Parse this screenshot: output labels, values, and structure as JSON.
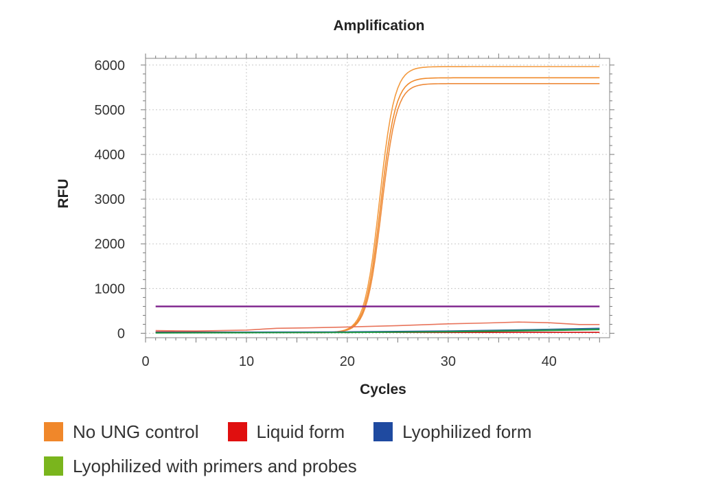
{
  "chart_data": {
    "type": "line",
    "title": "Amplification",
    "xlabel": "Cycles",
    "ylabel": "RFU",
    "xlim": [
      0,
      46
    ],
    "ylim": [
      -100,
      6150
    ],
    "xticks": [
      0,
      10,
      20,
      30,
      40
    ],
    "yticks": [
      0,
      1000,
      2000,
      3000,
      4000,
      5000,
      6000
    ],
    "grid": true,
    "legend_position": "bottom",
    "threshold": {
      "value": 600,
      "color": "#7b1f8a"
    },
    "series": [
      {
        "name": "No UNG control",
        "color": "#f39a3f",
        "plateau": 5950,
        "midpoint": 23.2,
        "slope": 1.35
      },
      {
        "name": "No UNG control",
        "color": "#f08a2c",
        "plateau": 5700,
        "midpoint": 23.3,
        "slope": 1.35
      },
      {
        "name": "No UNG control",
        "color": "#ee8a3a",
        "plateau": 5570,
        "midpoint": 23.4,
        "slope": 1.35
      },
      {
        "name": "Liquid form",
        "color": "#e8735a",
        "points": [
          [
            1,
            60
          ],
          [
            5,
            50
          ],
          [
            10,
            70
          ],
          [
            13,
            110
          ],
          [
            16,
            120
          ],
          [
            20,
            140
          ],
          [
            25,
            170
          ],
          [
            30,
            210
          ],
          [
            34,
            230
          ],
          [
            37,
            250
          ],
          [
            40,
            235
          ],
          [
            43,
            195
          ],
          [
            45,
            195
          ]
        ]
      },
      {
        "name": "Liquid form",
        "color": "#d40f0f",
        "points": [
          [
            1,
            30
          ],
          [
            10,
            25
          ],
          [
            20,
            22
          ],
          [
            30,
            18
          ],
          [
            40,
            20
          ],
          [
            45,
            20
          ]
        ]
      },
      {
        "name": "Lyophilized form",
        "color": "#1f4aa8",
        "points": [
          [
            1,
            20
          ],
          [
            10,
            25
          ],
          [
            20,
            30
          ],
          [
            30,
            50
          ],
          [
            38,
            80
          ],
          [
            45,
            110
          ]
        ]
      },
      {
        "name": "Lyophilized form",
        "color": "#2a7a7a",
        "points": [
          [
            1,
            15
          ],
          [
            10,
            20
          ],
          [
            20,
            25
          ],
          [
            30,
            45
          ],
          [
            40,
            85
          ],
          [
            45,
            100
          ]
        ]
      },
      {
        "name": "Lyophilized with primers and probes",
        "color": "#1a9a3a",
        "points": [
          [
            1,
            5
          ],
          [
            10,
            10
          ],
          [
            20,
            15
          ],
          [
            30,
            30
          ],
          [
            40,
            60
          ],
          [
            45,
            80
          ]
        ]
      }
    ],
    "legend": [
      {
        "label": "No UNG control",
        "color": "#f0872a"
      },
      {
        "label": "Liquid form",
        "color": "#e00f0f"
      },
      {
        "label": "Lyophilized form",
        "color": "#1f4aa0"
      },
      {
        "label": "Lyophilized with primers and probes",
        "color": "#7ab51d"
      }
    ]
  }
}
